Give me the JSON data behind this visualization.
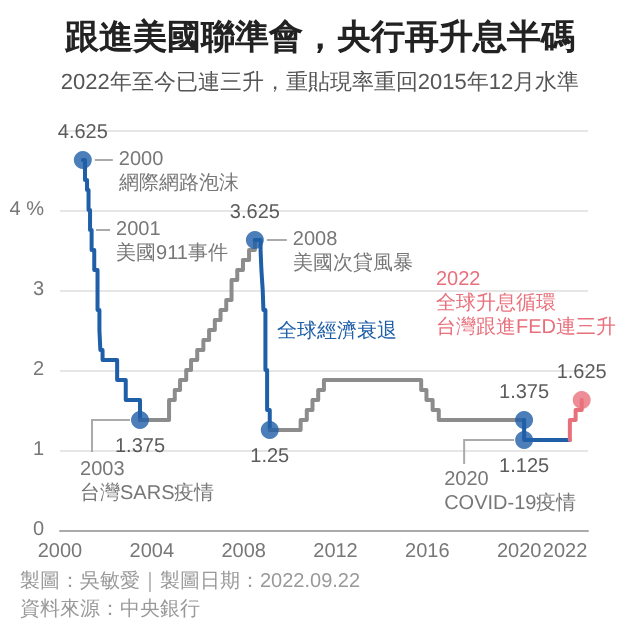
{
  "chart_data": {
    "type": "step",
    "title": "跟進美國聯準會，央行再升息半碼",
    "subtitle": "2022年至今已連三升，重貼現率重回2015年12月水準",
    "xlim": [
      "2000-01-01",
      "2022-12-31"
    ],
    "xticks": [
      "2000",
      "2004",
      "2008",
      "2012",
      "2016",
      "2020",
      "2022"
    ],
    "ylim": [
      0,
      5
    ],
    "yticks": [
      0,
      1,
      2,
      3,
      {
        "value": 4,
        "label": "4 %"
      },
      {
        "value": 5,
        "label": null
      }
    ],
    "grid": "y",
    "marker": "none",
    "line_style": "solid",
    "series": [
      {
        "color": "#1f5fa8",
        "x": [
          "2000-12-29",
          "2001-02-02",
          "2001-03-06",
          "2001-03-30",
          "2001-04-23",
          "2001-05-18",
          "2001-06-29",
          "2001-08-20",
          "2001-09-19",
          "2001-10-04",
          "2001-11-08",
          "2002-06-28",
          "2002-11-12",
          "2003-06-27"
        ],
        "values": [
          4.625,
          4.375,
          4.25,
          4.0,
          3.75,
          3.5,
          3.25,
          2.75,
          2.5,
          2.25,
          2.125,
          1.875,
          1.625,
          1.375
        ]
      },
      {
        "color": "#8c8c8c",
        "x": [
          "2003-06-27",
          "2004-10-01",
          "2004-12-31",
          "2005-03-25",
          "2005-07-01",
          "2005-09-16",
          "2005-12-23",
          "2006-03-31",
          "2006-06-30",
          "2006-09-29",
          "2006-12-29",
          "2007-03-30",
          "2007-06-22",
          "2007-09-21",
          "2007-12-21",
          "2008-03-27",
          "2008-06-27"
        ],
        "values": [
          1.375,
          1.625,
          1.75,
          1.875,
          2.0,
          2.125,
          2.25,
          2.375,
          2.5,
          2.625,
          2.75,
          2.875,
          3.125,
          3.25,
          3.375,
          3.5,
          3.625
        ]
      },
      {
        "color": "#1f5fa8",
        "x": [
          "2008-06-27",
          "2008-09-26",
          "2008-10-09",
          "2008-10-30",
          "2008-11-10",
          "2008-12-12",
          "2009-01-08",
          "2009-02-19"
        ],
        "values": [
          3.625,
          3.5,
          3.25,
          3.0,
          2.75,
          2.0,
          1.5,
          1.25
        ]
      },
      {
        "color": "#8c8c8c",
        "x": [
          "2009-02-19",
          "2010-06-25",
          "2010-10-01",
          "2010-12-31",
          "2011-04-01",
          "2011-07-01",
          "2015-09-25",
          "2015-12-18",
          "2016-03-25",
          "2016-07-01",
          "2020-03-19"
        ],
        "values": [
          1.25,
          1.375,
          1.5,
          1.625,
          1.75,
          1.875,
          1.75,
          1.625,
          1.5,
          1.375,
          1.375
        ]
      },
      {
        "color": "#1f5fa8",
        "x": [
          "2020-03-19",
          "2020-03-20",
          "2022-03-17"
        ],
        "values": [
          1.375,
          1.125,
          1.125
        ]
      },
      {
        "color": "#e8707c",
        "x": [
          "2022-03-17",
          "2022-03-18",
          "2022-06-17",
          "2022-09-22"
        ],
        "values": [
          1.125,
          1.375,
          1.5,
          1.625
        ]
      },
      {
        "type": "scatter",
        "marker": "circle",
        "x": [
          "2000-12-29",
          "2003-06-27",
          "2008-06-27",
          "2009-02-19",
          "2020-03-19",
          "2020-03-20",
          "2022-09-22"
        ],
        "values": [
          4.625,
          1.375,
          3.625,
          1.25,
          1.375,
          1.125,
          1.625
        ],
        "colors": [
          "#1f5fa8",
          "#1f5fa8",
          "#1f5fa8",
          "#1f5fa8",
          "#1f5fa8",
          "#1f5fa8",
          "#e8707c"
        ],
        "value_labels": [
          "4.625",
          "1.375",
          "3.625",
          "1.25",
          "1.375",
          "1.125",
          "1.625"
        ]
      }
    ],
    "annotations": [
      {
        "text": "2000\n網際網路泡沫",
        "x": "2000-12-29",
        "y": 4.625
      },
      {
        "text": "2001\n美國911事件",
        "x": "2001-04-23",
        "y": 3.75
      },
      {
        "text": "2003\n台灣SARS疫情",
        "x": "2003-06-27",
        "y": 1.375
      },
      {
        "text": "2008\n美國次貸風暴",
        "x": "2008-06-27",
        "y": 3.625
      },
      {
        "text": "全球經濟衰退",
        "x": "2008-12-12",
        "y": 2.5
      },
      {
        "text": "2020\nCOVID-19疫情",
        "x": "2020-03-20",
        "y": 1.125
      },
      "2022\n全球升息循環",
      "台灣跟進FED連三升",
      "製圖：吳敏愛｜製圖日期：2022.09.22",
      "資料來源：中央銀行"
    ]
  }
}
